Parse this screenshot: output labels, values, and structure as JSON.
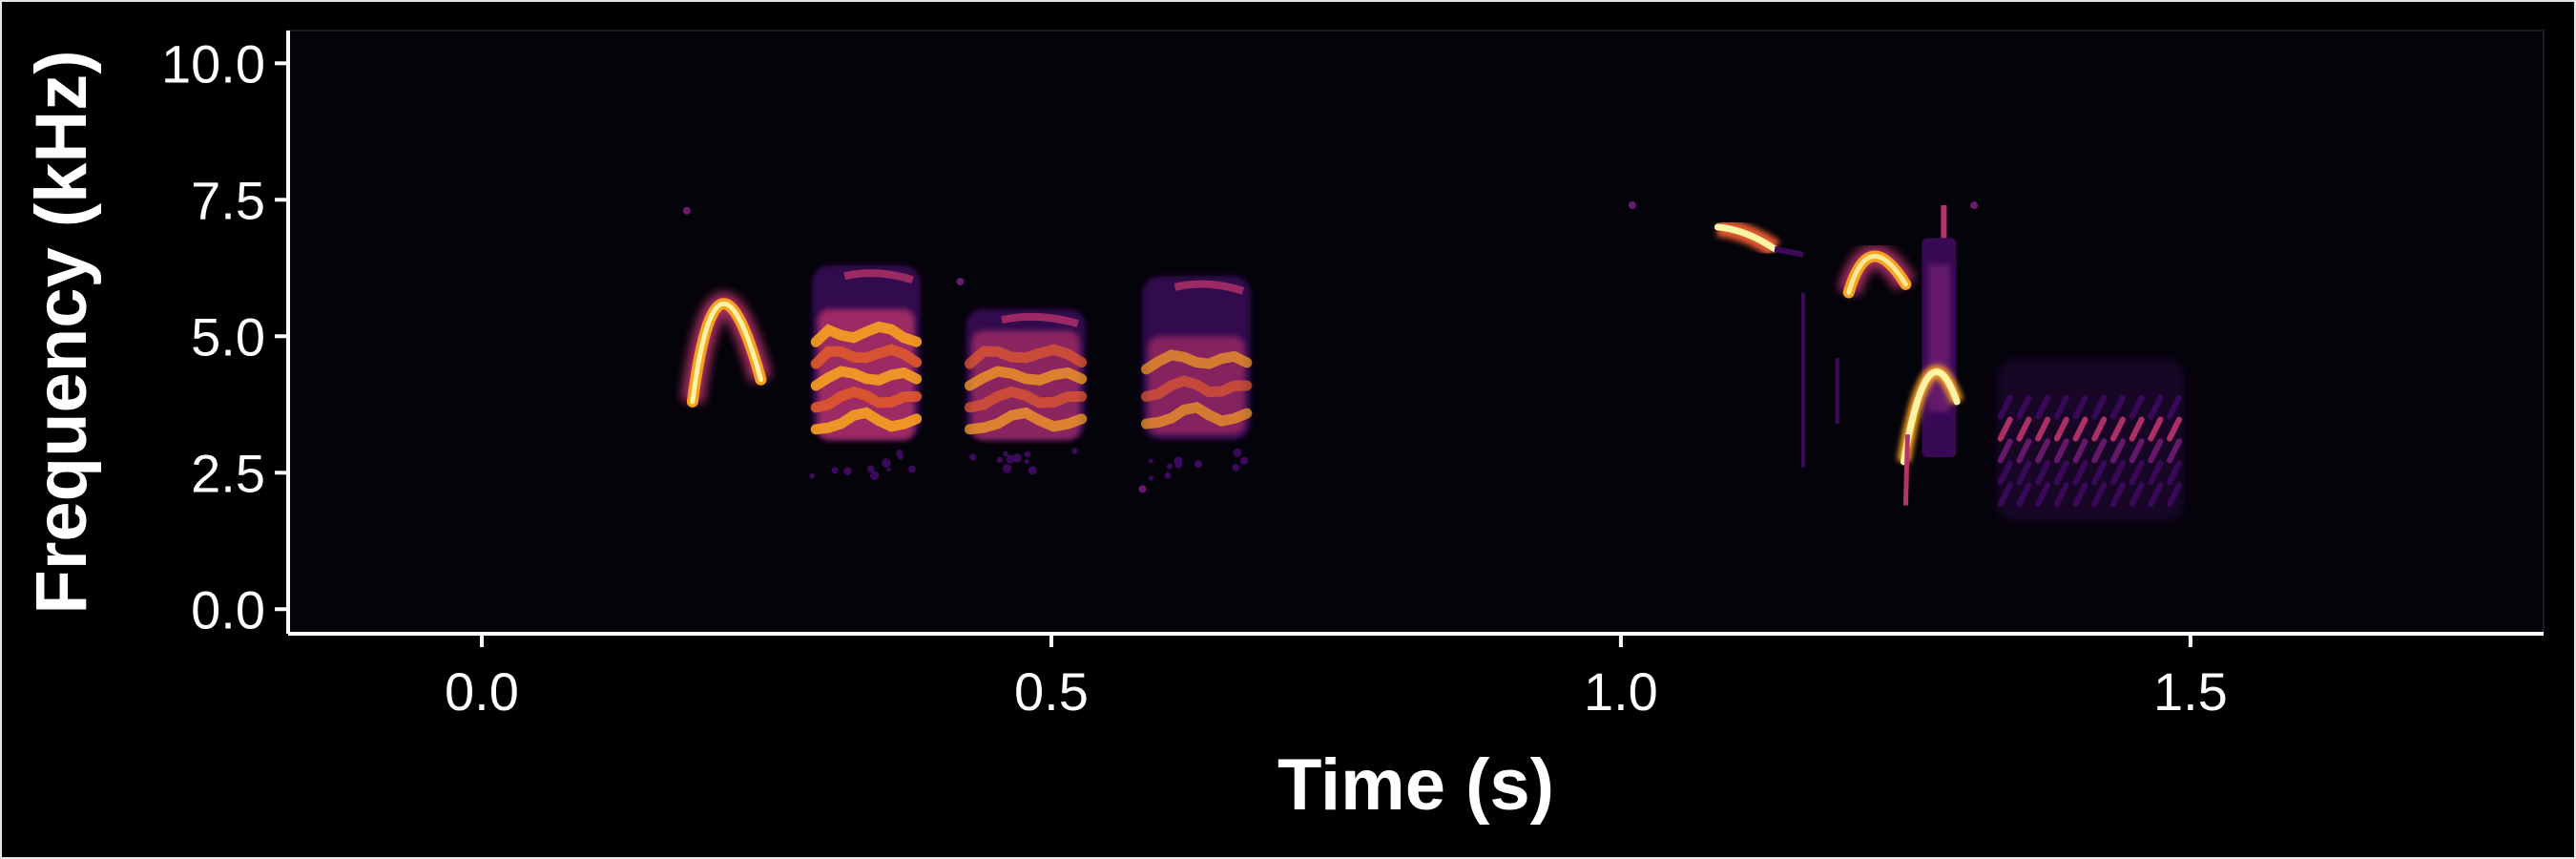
{
  "chart_data": {
    "type": "heatmap",
    "subtype": "spectrogram",
    "title": "",
    "xlabel": "Time (s)",
    "ylabel": "Frequency (kHz)",
    "xlim": [
      -0.17,
      1.81
    ],
    "ylim": [
      -0.45,
      10.6
    ],
    "x_ticks": [
      0.0,
      0.5,
      1.0,
      1.5
    ],
    "x_tick_labels": [
      "0.0",
      "0.5",
      "1.0",
      "1.5"
    ],
    "y_ticks": [
      0.0,
      2.5,
      5.0,
      7.5,
      10.0
    ],
    "y_tick_labels": [
      "0.0",
      "2.5",
      "5.0",
      "7.5",
      "10.0"
    ],
    "grid": false,
    "legend": "none",
    "colormap": "inferno",
    "background_color": "#04030a",
    "colors": {
      "figure_background": "#000000",
      "axis_line": "#ffffff",
      "text": "#ffffff",
      "low": "#3b0a5a",
      "mid_low": "#6a1a6e",
      "mid": "#b5326a",
      "mid_high": "#e0582e",
      "high": "#f8a020",
      "peak": "#fcf4a4"
    },
    "syllables": [
      {
        "t_start": 0.185,
        "t_end": 0.245,
        "f_low": 3.8,
        "f_high": 6.5,
        "shape": "arch",
        "peak_intensity": 1.0
      },
      {
        "t_start": 0.29,
        "t_end": 0.385,
        "f_low": 3.1,
        "f_high": 6.3,
        "shape": "harmonic_stack",
        "harmonics": [
          3.4,
          3.8,
          4.2,
          4.6,
          5.0
        ],
        "peak_intensity": 0.9
      },
      {
        "t_start": 0.425,
        "t_end": 0.53,
        "f_low": 3.1,
        "f_high": 5.5,
        "shape": "harmonic_stack",
        "harmonics": [
          3.4,
          3.8,
          4.2,
          4.6
        ],
        "peak_intensity": 0.75
      },
      {
        "t_start": 0.58,
        "t_end": 0.675,
        "f_low": 3.1,
        "f_high": 6.1,
        "shape": "harmonic_stack",
        "harmonics": [
          3.5,
          4.0,
          4.5
        ],
        "peak_intensity": 0.7
      },
      {
        "t_start": 1.085,
        "t_end": 1.135,
        "f_low": 6.6,
        "f_high": 7.1,
        "shape": "downsweep",
        "peak_intensity": 0.95
      },
      {
        "t_start": 1.2,
        "t_end": 1.25,
        "f_low": 5.8,
        "f_high": 6.8,
        "shape": "arch",
        "peak_intensity": 0.85
      },
      {
        "t_start": 1.245,
        "t_end": 1.3,
        "f_low": 1.9,
        "f_high": 6.8,
        "shape": "broadband_arch",
        "peak_intensity": 1.0
      },
      {
        "t_start": 1.33,
        "t_end": 1.495,
        "f_low": 1.6,
        "f_high": 4.6,
        "shape": "trill",
        "pulses": 10,
        "peak_intensity": 0.55
      }
    ]
  }
}
